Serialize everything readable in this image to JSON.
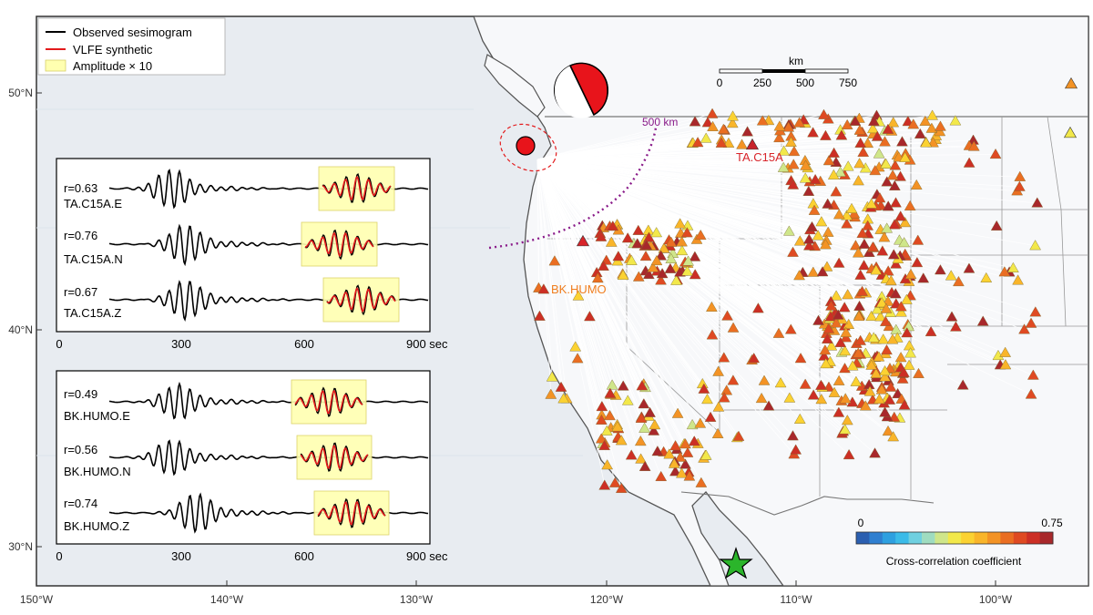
{
  "map": {
    "lon_ticks": [
      "150°W",
      "140°W",
      "130°W",
      "120°W",
      "110°W",
      "100°W"
    ],
    "lat_ticks": [
      "50°N",
      "40°N",
      "30°N"
    ],
    "distance_ring_label": "500 km",
    "scale_bar": {
      "unit": "km",
      "ticks": [
        "0",
        "250",
        "500",
        "750"
      ]
    },
    "colorbar": {
      "min_label": "0",
      "max_label": "0.75",
      "title": "Cross-correlation coefficient",
      "colors": [
        "#2b5fb0",
        "#2f7fd0",
        "#2ea0e0",
        "#3bbbe8",
        "#6fd0e0",
        "#9fdcc0",
        "#cfe68a",
        "#f2e84a",
        "#fbd232",
        "#f9b52a",
        "#f39325",
        "#ea6e22",
        "#df4a22",
        "#cc2f25",
        "#a8282b"
      ]
    },
    "station_labels": {
      "c15a": "TA.C15A",
      "humo": "BK.HUMO"
    },
    "station_label_colors": {
      "c15a": "#d8242a",
      "humo": "#f07e1f"
    },
    "event_color": "#e8141b",
    "star_color": "#2bb52b",
    "ring_color": "#8a1b8a"
  },
  "legend": {
    "items": [
      {
        "label": "Observed sesimogram",
        "color": "#000000"
      },
      {
        "label": "VLFE synthetic",
        "color": "#e31a1c"
      },
      {
        "label": "Amplitude × 10",
        "color": "#ffffb0"
      }
    ]
  },
  "seismo_panels": [
    {
      "x_ticks": [
        "0",
        "300",
        "600",
        "900 sec"
      ],
      "traces": [
        {
          "r": "r=0.63",
          "name": "TA.C15A.E"
        },
        {
          "r": "r=0.76",
          "name": "TA.C15A.N"
        },
        {
          "r": "r=0.67",
          "name": "TA.C15A.Z"
        }
      ]
    },
    {
      "x_ticks": [
        "0",
        "300",
        "600",
        "900 sec"
      ],
      "traces": [
        {
          "r": "r=0.49",
          "name": "BK.HUMO.E"
        },
        {
          "r": "r=0.56",
          "name": "BK.HUMO.N"
        },
        {
          "r": "r=0.74",
          "name": "BK.HUMO.Z"
        }
      ]
    }
  ]
}
